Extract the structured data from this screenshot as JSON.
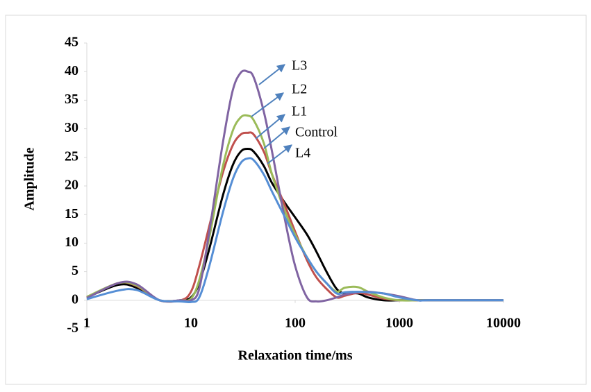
{
  "chart_data": {
    "type": "line",
    "x_label": "Relaxation time/ms",
    "y_label": "Amplitude",
    "xscale": "log",
    "xlim": [
      1,
      10000
    ],
    "xticks": [
      1,
      10,
      100,
      1000,
      10000
    ],
    "ylim": [
      -5,
      45
    ],
    "yticks": [
      -5,
      0,
      5,
      10,
      15,
      20,
      25,
      30,
      35,
      40,
      45
    ],
    "grid": false,
    "x": [
      1,
      2,
      3,
      5,
      8,
      10,
      12,
      15,
      20,
      25,
      30,
      35,
      40,
      50,
      60,
      80,
      100,
      130,
      160,
      200,
      250,
      300,
      400,
      500,
      700,
      1000,
      1500,
      2000,
      10000
    ],
    "series": [
      {
        "name": "Control",
        "color": "#000000",
        "values": [
          0.5,
          2.7,
          2.2,
          0,
          0,
          0.5,
          3,
          9,
          18,
          23.5,
          26,
          26.5,
          26,
          23.5,
          20.5,
          17,
          14.5,
          11.5,
          8.5,
          5,
          2,
          1.2,
          1.2,
          0.5,
          0,
          0,
          0,
          0,
          0
        ]
      },
      {
        "name": "L1",
        "color": "#c0504d",
        "values": [
          0.5,
          3,
          2.5,
          0,
          0,
          1.5,
          6,
          13,
          22,
          27,
          29,
          29.3,
          29,
          26,
          22,
          16.5,
          12,
          7,
          4,
          2,
          0.5,
          0.8,
          1.3,
          1,
          0.3,
          0,
          0,
          0,
          0
        ]
      },
      {
        "name": "L2",
        "color": "#9bbb59",
        "values": [
          0.6,
          3,
          2.6,
          0,
          0,
          0.3,
          3.5,
          11,
          23,
          29.5,
          32,
          32.3,
          31.5,
          27.5,
          22,
          15.5,
          11.5,
          7.5,
          5,
          3,
          1.5,
          2.2,
          2.3,
          1.5,
          0.5,
          0,
          0,
          0,
          0
        ]
      },
      {
        "name": "L3",
        "color": "#8064a2",
        "values": [
          0.4,
          3,
          2.8,
          0,
          0,
          0,
          2,
          12,
          27,
          36.5,
          39.8,
          40,
          39,
          33,
          26,
          14,
          6,
          0.5,
          -0.2,
          0,
          0.5,
          1,
          1.4,
          1.5,
          1.2,
          0.7,
          0,
          0,
          0
        ]
      },
      {
        "name": "L4",
        "color": "#558ed5",
        "values": [
          0.2,
          1.7,
          1.8,
          0,
          -0.2,
          -0.3,
          0.5,
          6,
          15,
          21,
          24,
          24.8,
          24.5,
          22,
          19,
          14.5,
          11,
          7.5,
          5,
          3,
          1.2,
          1.4,
          1.5,
          1.4,
          1.2,
          0.5,
          0,
          0,
          0
        ]
      }
    ],
    "annotations": [
      "L3",
      "L2",
      "L1",
      "Control",
      "L4"
    ],
    "annotation_color": "#4f81bd"
  }
}
